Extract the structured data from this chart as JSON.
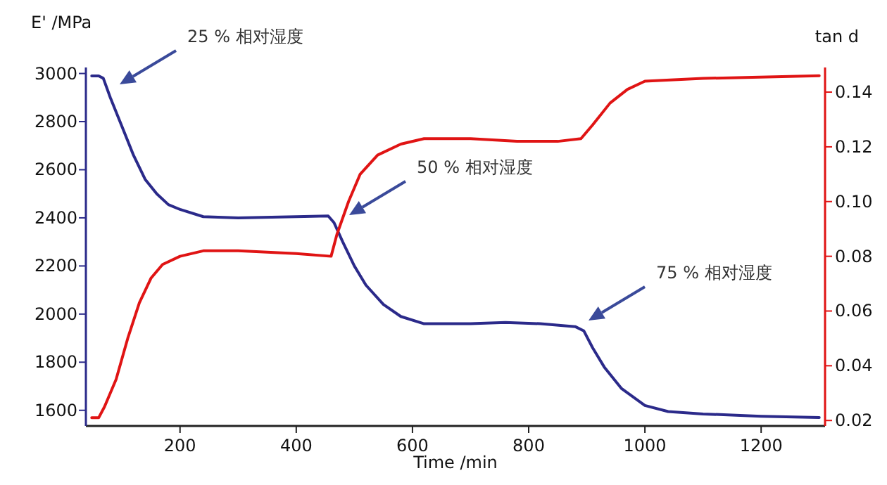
{
  "chart_data": {
    "type": "line",
    "xlabel": "Time /min",
    "ylabel": "E' /MPa",
    "y2label": "tan d",
    "xlim": [
      38,
      1310
    ],
    "xticks": [
      200,
      400,
      600,
      800,
      1000,
      1200
    ],
    "ylim": [
      1535,
      3025
    ],
    "yticks": [
      1600,
      1800,
      2000,
      2200,
      2400,
      2600,
      2800,
      3000
    ],
    "y2lim": [
      0.018,
      0.149
    ],
    "y2ticks": [
      0.02,
      0.04,
      0.06,
      0.08,
      {
        "value": 0.1,
        "label": "0.10"
      },
      0.12,
      0.14
    ],
    "grid": false,
    "series": [
      {
        "color": "#2b2a8a",
        "x": [
          48,
          60,
          68,
          80,
          100,
          120,
          140,
          160,
          180,
          200,
          240,
          300,
          400,
          455,
          465,
          480,
          500,
          520,
          550,
          580,
          620,
          700,
          760,
          820,
          880,
          895,
          910,
          930,
          960,
          1000,
          1040,
          1100,
          1200,
          1300
        ],
        "values": [
          2990,
          2990,
          2980,
          2900,
          2780,
          2660,
          2560,
          2500,
          2455,
          2435,
          2405,
          2400,
          2405,
          2408,
          2380,
          2300,
          2200,
          2120,
          2040,
          1990,
          1960,
          1960,
          1965,
          1960,
          1948,
          1930,
          1860,
          1780,
          1690,
          1620,
          1595,
          1585,
          1575,
          1570
        ]
      },
      {
        "color": "#e01414",
        "axis": "y2",
        "x": [
          48,
          60,
          70,
          90,
          110,
          130,
          150,
          170,
          200,
          240,
          300,
          400,
          460,
          470,
          490,
          510,
          540,
          580,
          620,
          700,
          780,
          850,
          890,
          910,
          940,
          970,
          1000,
          1100,
          1300
        ],
        "values": [
          0.021,
          0.021,
          0.025,
          0.035,
          0.05,
          0.063,
          0.072,
          0.077,
          0.08,
          0.082,
          0.082,
          0.081,
          0.08,
          0.088,
          0.1,
          0.11,
          0.117,
          0.121,
          0.123,
          0.123,
          0.122,
          0.122,
          0.123,
          0.128,
          0.136,
          0.141,
          0.144,
          0.145,
          0.146
        ]
      }
    ],
    "annotations": [
      "25 % 相对湿度",
      "50 % 相对湿度",
      "75 % 相对湿度"
    ]
  }
}
